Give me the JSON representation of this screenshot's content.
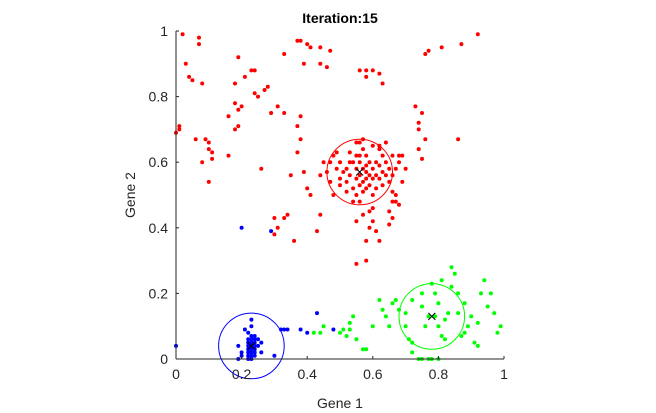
{
  "chart_data": {
    "type": "scatter",
    "title": "Iteration:15",
    "xlabel": "Gene 1",
    "ylabel": "Gene 2",
    "xlim": [
      0,
      1
    ],
    "ylim": [
      0,
      1
    ],
    "x_ticks": [
      "0",
      "0.2",
      "0.4",
      "0.6",
      "0.8",
      "1"
    ],
    "y_ticks": [
      "0",
      "0.2",
      "0.4",
      "0.6",
      "0.8",
      "1"
    ],
    "grid": false,
    "aspect": "equal",
    "clusters": [
      {
        "color": "#ff0000",
        "centroid": [
          0.56,
          0.57
        ],
        "radius": 0.1,
        "points": [
          [
            0.02,
            0.99
          ],
          [
            0.07,
            0.98
          ],
          [
            0.07,
            0.96
          ],
          [
            0.03,
            0.9
          ],
          [
            0.04,
            0.86
          ],
          [
            0.05,
            0.85
          ],
          [
            0.08,
            0.84
          ],
          [
            0.19,
            0.92
          ],
          [
            0.23,
            0.88
          ],
          [
            0.24,
            0.88
          ],
          [
            0.21,
            0.86
          ],
          [
            0.18,
            0.84
          ],
          [
            0.28,
            0.83
          ],
          [
            0.27,
            0.82
          ],
          [
            0.24,
            0.81
          ],
          [
            0.18,
            0.78
          ],
          [
            0.19,
            0.76
          ],
          [
            0.2,
            0.77
          ],
          [
            0.16,
            0.74
          ],
          [
            0.25,
            0.8
          ],
          [
            0.19,
            0.71
          ],
          [
            0.18,
            0.7
          ],
          [
            0.01,
            0.71
          ],
          [
            0.01,
            0.7
          ],
          [
            0.0,
            0.69
          ],
          [
            0.06,
            0.67
          ],
          [
            0.09,
            0.67
          ],
          [
            0.1,
            0.66
          ],
          [
            0.1,
            0.64
          ],
          [
            0.11,
            0.63
          ],
          [
            0.11,
            0.61
          ],
          [
            0.16,
            0.62
          ],
          [
            0.08,
            0.6
          ],
          [
            0.1,
            0.54
          ],
          [
            0.26,
            0.58
          ],
          [
            0.29,
            0.75
          ],
          [
            0.33,
            0.75
          ],
          [
            0.31,
            0.77
          ],
          [
            0.37,
            0.97
          ],
          [
            0.38,
            0.97
          ],
          [
            0.4,
            0.96
          ],
          [
            0.41,
            0.95
          ],
          [
            0.44,
            0.95
          ],
          [
            0.47,
            0.94
          ],
          [
            0.33,
            0.93
          ],
          [
            0.39,
            0.9
          ],
          [
            0.44,
            0.9
          ],
          [
            0.46,
            0.89
          ],
          [
            0.56,
            0.88
          ],
          [
            0.58,
            0.88
          ],
          [
            0.6,
            0.88
          ],
          [
            0.62,
            0.87
          ],
          [
            0.58,
            0.86
          ],
          [
            0.63,
            0.84
          ],
          [
            0.76,
            0.93
          ],
          [
            0.77,
            0.94
          ],
          [
            0.81,
            0.95
          ],
          [
            0.87,
            0.96
          ],
          [
            0.92,
            0.99
          ],
          [
            0.73,
            0.77
          ],
          [
            0.75,
            0.75
          ],
          [
            0.74,
            0.72
          ],
          [
            0.74,
            0.7
          ],
          [
            0.86,
            0.67
          ],
          [
            0.76,
            0.67
          ],
          [
            0.74,
            0.64
          ],
          [
            0.75,
            0.61
          ],
          [
            0.37,
            0.71
          ],
          [
            0.38,
            0.74
          ],
          [
            0.38,
            0.67
          ],
          [
            0.37,
            0.63
          ],
          [
            0.35,
            0.56
          ],
          [
            0.39,
            0.57
          ],
          [
            0.4,
            0.52
          ],
          [
            0.44,
            0.56
          ],
          [
            0.41,
            0.5
          ],
          [
            0.44,
            0.44
          ],
          [
            0.43,
            0.39
          ],
          [
            0.34,
            0.44
          ],
          [
            0.33,
            0.43
          ],
          [
            0.3,
            0.43
          ],
          [
            0.31,
            0.4
          ],
          [
            0.3,
            0.38
          ],
          [
            0.36,
            0.36
          ],
          [
            0.51,
            0.57
          ],
          [
            0.5,
            0.6
          ],
          [
            0.49,
            0.58
          ],
          [
            0.52,
            0.54
          ],
          [
            0.53,
            0.6
          ],
          [
            0.53,
            0.56
          ],
          [
            0.54,
            0.52
          ],
          [
            0.55,
            0.62
          ],
          [
            0.55,
            0.58
          ],
          [
            0.55,
            0.55
          ],
          [
            0.55,
            0.5
          ],
          [
            0.56,
            0.66
          ],
          [
            0.56,
            0.62
          ],
          [
            0.56,
            0.6
          ],
          [
            0.56,
            0.56
          ],
          [
            0.56,
            0.53
          ],
          [
            0.56,
            0.48
          ],
          [
            0.57,
            0.64
          ],
          [
            0.57,
            0.58
          ],
          [
            0.57,
            0.54
          ],
          [
            0.57,
            0.51
          ],
          [
            0.57,
            0.44
          ],
          [
            0.58,
            0.62
          ],
          [
            0.58,
            0.59
          ],
          [
            0.58,
            0.57
          ],
          [
            0.58,
            0.55
          ],
          [
            0.58,
            0.52
          ],
          [
            0.59,
            0.6
          ],
          [
            0.59,
            0.56
          ],
          [
            0.59,
            0.53
          ],
          [
            0.6,
            0.58
          ],
          [
            0.6,
            0.55
          ],
          [
            0.6,
            0.5
          ],
          [
            0.61,
            0.6
          ],
          [
            0.61,
            0.56
          ],
          [
            0.61,
            0.52
          ],
          [
            0.62,
            0.59
          ],
          [
            0.62,
            0.55
          ],
          [
            0.63,
            0.57
          ],
          [
            0.63,
            0.53
          ],
          [
            0.64,
            0.6
          ],
          [
            0.64,
            0.56
          ],
          [
            0.65,
            0.58
          ],
          [
            0.65,
            0.54
          ],
          [
            0.66,
            0.62
          ],
          [
            0.66,
            0.56
          ],
          [
            0.67,
            0.58
          ],
          [
            0.63,
            0.62
          ],
          [
            0.62,
            0.64
          ],
          [
            0.6,
            0.65
          ],
          [
            0.54,
            0.6
          ],
          [
            0.53,
            0.63
          ],
          [
            0.52,
            0.51
          ],
          [
            0.54,
            0.48
          ],
          [
            0.47,
            0.6
          ],
          [
            0.47,
            0.54
          ],
          [
            0.46,
            0.57
          ],
          [
            0.45,
            0.6
          ],
          [
            0.48,
            0.62
          ],
          [
            0.48,
            0.5
          ],
          [
            0.5,
            0.53
          ],
          [
            0.55,
            0.66
          ],
          [
            0.57,
            0.67
          ],
          [
            0.59,
            0.45
          ],
          [
            0.6,
            0.46
          ],
          [
            0.6,
            0.42
          ],
          [
            0.61,
            0.39
          ],
          [
            0.62,
            0.36
          ],
          [
            0.58,
            0.36
          ],
          [
            0.65,
            0.45
          ],
          [
            0.66,
            0.51
          ],
          [
            0.68,
            0.6
          ],
          [
            0.68,
            0.62
          ],
          [
            0.65,
            0.41
          ],
          [
            0.67,
            0.48
          ],
          [
            0.67,
            0.5
          ],
          [
            0.69,
            0.54
          ],
          [
            0.68,
            0.47
          ],
          [
            0.66,
            0.43
          ],
          [
            0.59,
            0.4
          ],
          [
            0.55,
            0.42
          ],
          [
            0.58,
            0.3
          ],
          [
            0.55,
            0.29
          ],
          [
            0.62,
            0.65
          ],
          [
            0.7,
            0.58
          ],
          [
            0.69,
            0.62
          ],
          [
            0.64,
            0.66
          ],
          [
            0.66,
            0.48
          ],
          [
            0.52,
            0.58
          ],
          [
            0.5,
            0.55
          ],
          [
            0.49,
            0.63
          ]
        ]
      },
      {
        "color": "#0000ff",
        "centroid": [
          0.23,
          0.04
        ],
        "radius": 0.1,
        "points": [
          [
            0.0,
            0.04
          ],
          [
            0.2,
            0.4
          ],
          [
            0.29,
            0.39
          ],
          [
            0.23,
            0.12
          ],
          [
            0.23,
            0.1
          ],
          [
            0.22,
            0.08
          ],
          [
            0.23,
            0.07
          ],
          [
            0.24,
            0.07
          ],
          [
            0.22,
            0.06
          ],
          [
            0.23,
            0.06
          ],
          [
            0.24,
            0.06
          ],
          [
            0.25,
            0.06
          ],
          [
            0.22,
            0.05
          ],
          [
            0.23,
            0.05
          ],
          [
            0.24,
            0.05
          ],
          [
            0.22,
            0.04
          ],
          [
            0.23,
            0.04
          ],
          [
            0.24,
            0.04
          ],
          [
            0.25,
            0.04
          ],
          [
            0.19,
            0.04
          ],
          [
            0.22,
            0.03
          ],
          [
            0.23,
            0.03
          ],
          [
            0.24,
            0.03
          ],
          [
            0.22,
            0.02
          ],
          [
            0.23,
            0.02
          ],
          [
            0.24,
            0.02
          ],
          [
            0.2,
            0.02
          ],
          [
            0.26,
            0.02
          ],
          [
            0.22,
            0.01
          ],
          [
            0.23,
            0.01
          ],
          [
            0.24,
            0.01
          ],
          [
            0.23,
            0.0
          ],
          [
            0.19,
            0.0
          ],
          [
            0.2,
            0.01
          ],
          [
            0.21,
            0.09
          ],
          [
            0.3,
            0.01
          ],
          [
            0.32,
            0.09
          ],
          [
            0.33,
            0.09
          ],
          [
            0.34,
            0.09
          ],
          [
            0.38,
            0.09
          ],
          [
            0.4,
            0.08
          ],
          [
            0.43,
            0.14
          ],
          [
            0.48,
            0.09
          ],
          [
            0.26,
            0.05
          ],
          [
            0.22,
            0.0
          ]
        ]
      },
      {
        "color": "#00ff00",
        "centroid": [
          0.78,
          0.13
        ],
        "radius": 0.1,
        "points": [
          [
            0.42,
            0.08
          ],
          [
            0.44,
            0.08
          ],
          [
            0.45,
            0.1
          ],
          [
            0.5,
            0.08
          ],
          [
            0.51,
            0.09
          ],
          [
            0.52,
            0.07
          ],
          [
            0.53,
            0.09
          ],
          [
            0.53,
            0.11
          ],
          [
            0.54,
            0.13
          ],
          [
            0.55,
            0.06
          ],
          [
            0.57,
            0.03
          ],
          [
            0.58,
            0.03
          ],
          [
            0.6,
            0.1
          ],
          [
            0.62,
            0.18
          ],
          [
            0.63,
            0.15
          ],
          [
            0.64,
            0.13
          ],
          [
            0.65,
            0.1
          ],
          [
            0.66,
            0.17
          ],
          [
            0.67,
            0.18
          ],
          [
            0.68,
            0.15
          ],
          [
            0.7,
            0.14
          ],
          [
            0.7,
            0.1
          ],
          [
            0.71,
            0.06
          ],
          [
            0.72,
            0.05
          ],
          [
            0.72,
            0.18
          ],
          [
            0.74,
            0.0
          ],
          [
            0.75,
            0.0
          ],
          [
            0.77,
            0.0
          ],
          [
            0.78,
            0.0
          ],
          [
            0.8,
            0.0
          ],
          [
            0.75,
            0.16
          ],
          [
            0.76,
            0.1
          ],
          [
            0.77,
            0.13
          ],
          [
            0.78,
            0.23
          ],
          [
            0.79,
            0.2
          ],
          [
            0.79,
            0.13
          ],
          [
            0.8,
            0.17
          ],
          [
            0.8,
            0.1
          ],
          [
            0.81,
            0.07
          ],
          [
            0.82,
            0.06
          ],
          [
            0.82,
            0.12
          ],
          [
            0.83,
            0.14
          ],
          [
            0.84,
            0.28
          ],
          [
            0.85,
            0.26
          ],
          [
            0.86,
            0.2
          ],
          [
            0.86,
            0.14
          ],
          [
            0.87,
            0.07
          ],
          [
            0.88,
            0.08
          ],
          [
            0.89,
            0.1
          ],
          [
            0.9,
            0.13
          ],
          [
            0.91,
            0.05
          ],
          [
            0.92,
            0.04
          ],
          [
            0.93,
            0.2
          ],
          [
            0.94,
            0.24
          ],
          [
            0.95,
            0.16
          ],
          [
            0.96,
            0.2
          ],
          [
            0.97,
            0.14
          ],
          [
            0.98,
            0.08
          ],
          [
            0.99,
            0.1
          ],
          [
            0.75,
            0.2
          ],
          [
            0.72,
            0.02
          ],
          [
            0.84,
            0.22
          ],
          [
            0.88,
            0.17
          ],
          [
            0.92,
            0.11
          ],
          [
            0.81,
            0.24
          ]
        ]
      }
    ]
  }
}
